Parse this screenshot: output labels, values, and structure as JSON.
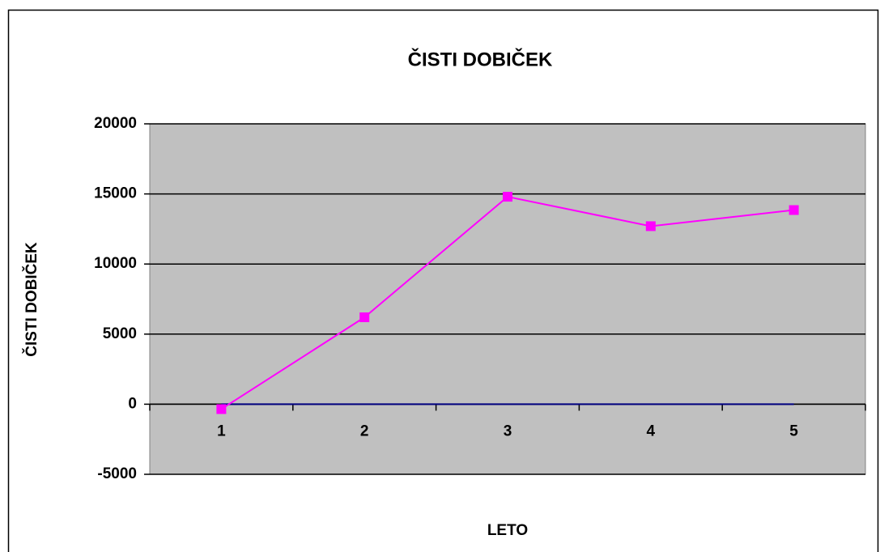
{
  "chart_data": {
    "type": "line",
    "title": "ČISTI DOBIČEK",
    "x_label": "LETO",
    "y_label": "ČISTI DOBIČEK",
    "categories": [
      "1",
      "2",
      "3",
      "4",
      "5"
    ],
    "series": [
      {
        "color": "#ff00ff",
        "marker": "square",
        "values": [
          -350,
          6200,
          14800,
          12700,
          13850
        ]
      },
      {
        "color": "#000080",
        "values": [
          0,
          0,
          0,
          0,
          0
        ]
      }
    ],
    "ylim": [
      -5000,
      20000
    ],
    "yticks": [
      -5000,
      0,
      5000,
      10000,
      15000,
      20000
    ],
    "grid": true,
    "plot_background": "#c0c0c0"
  }
}
